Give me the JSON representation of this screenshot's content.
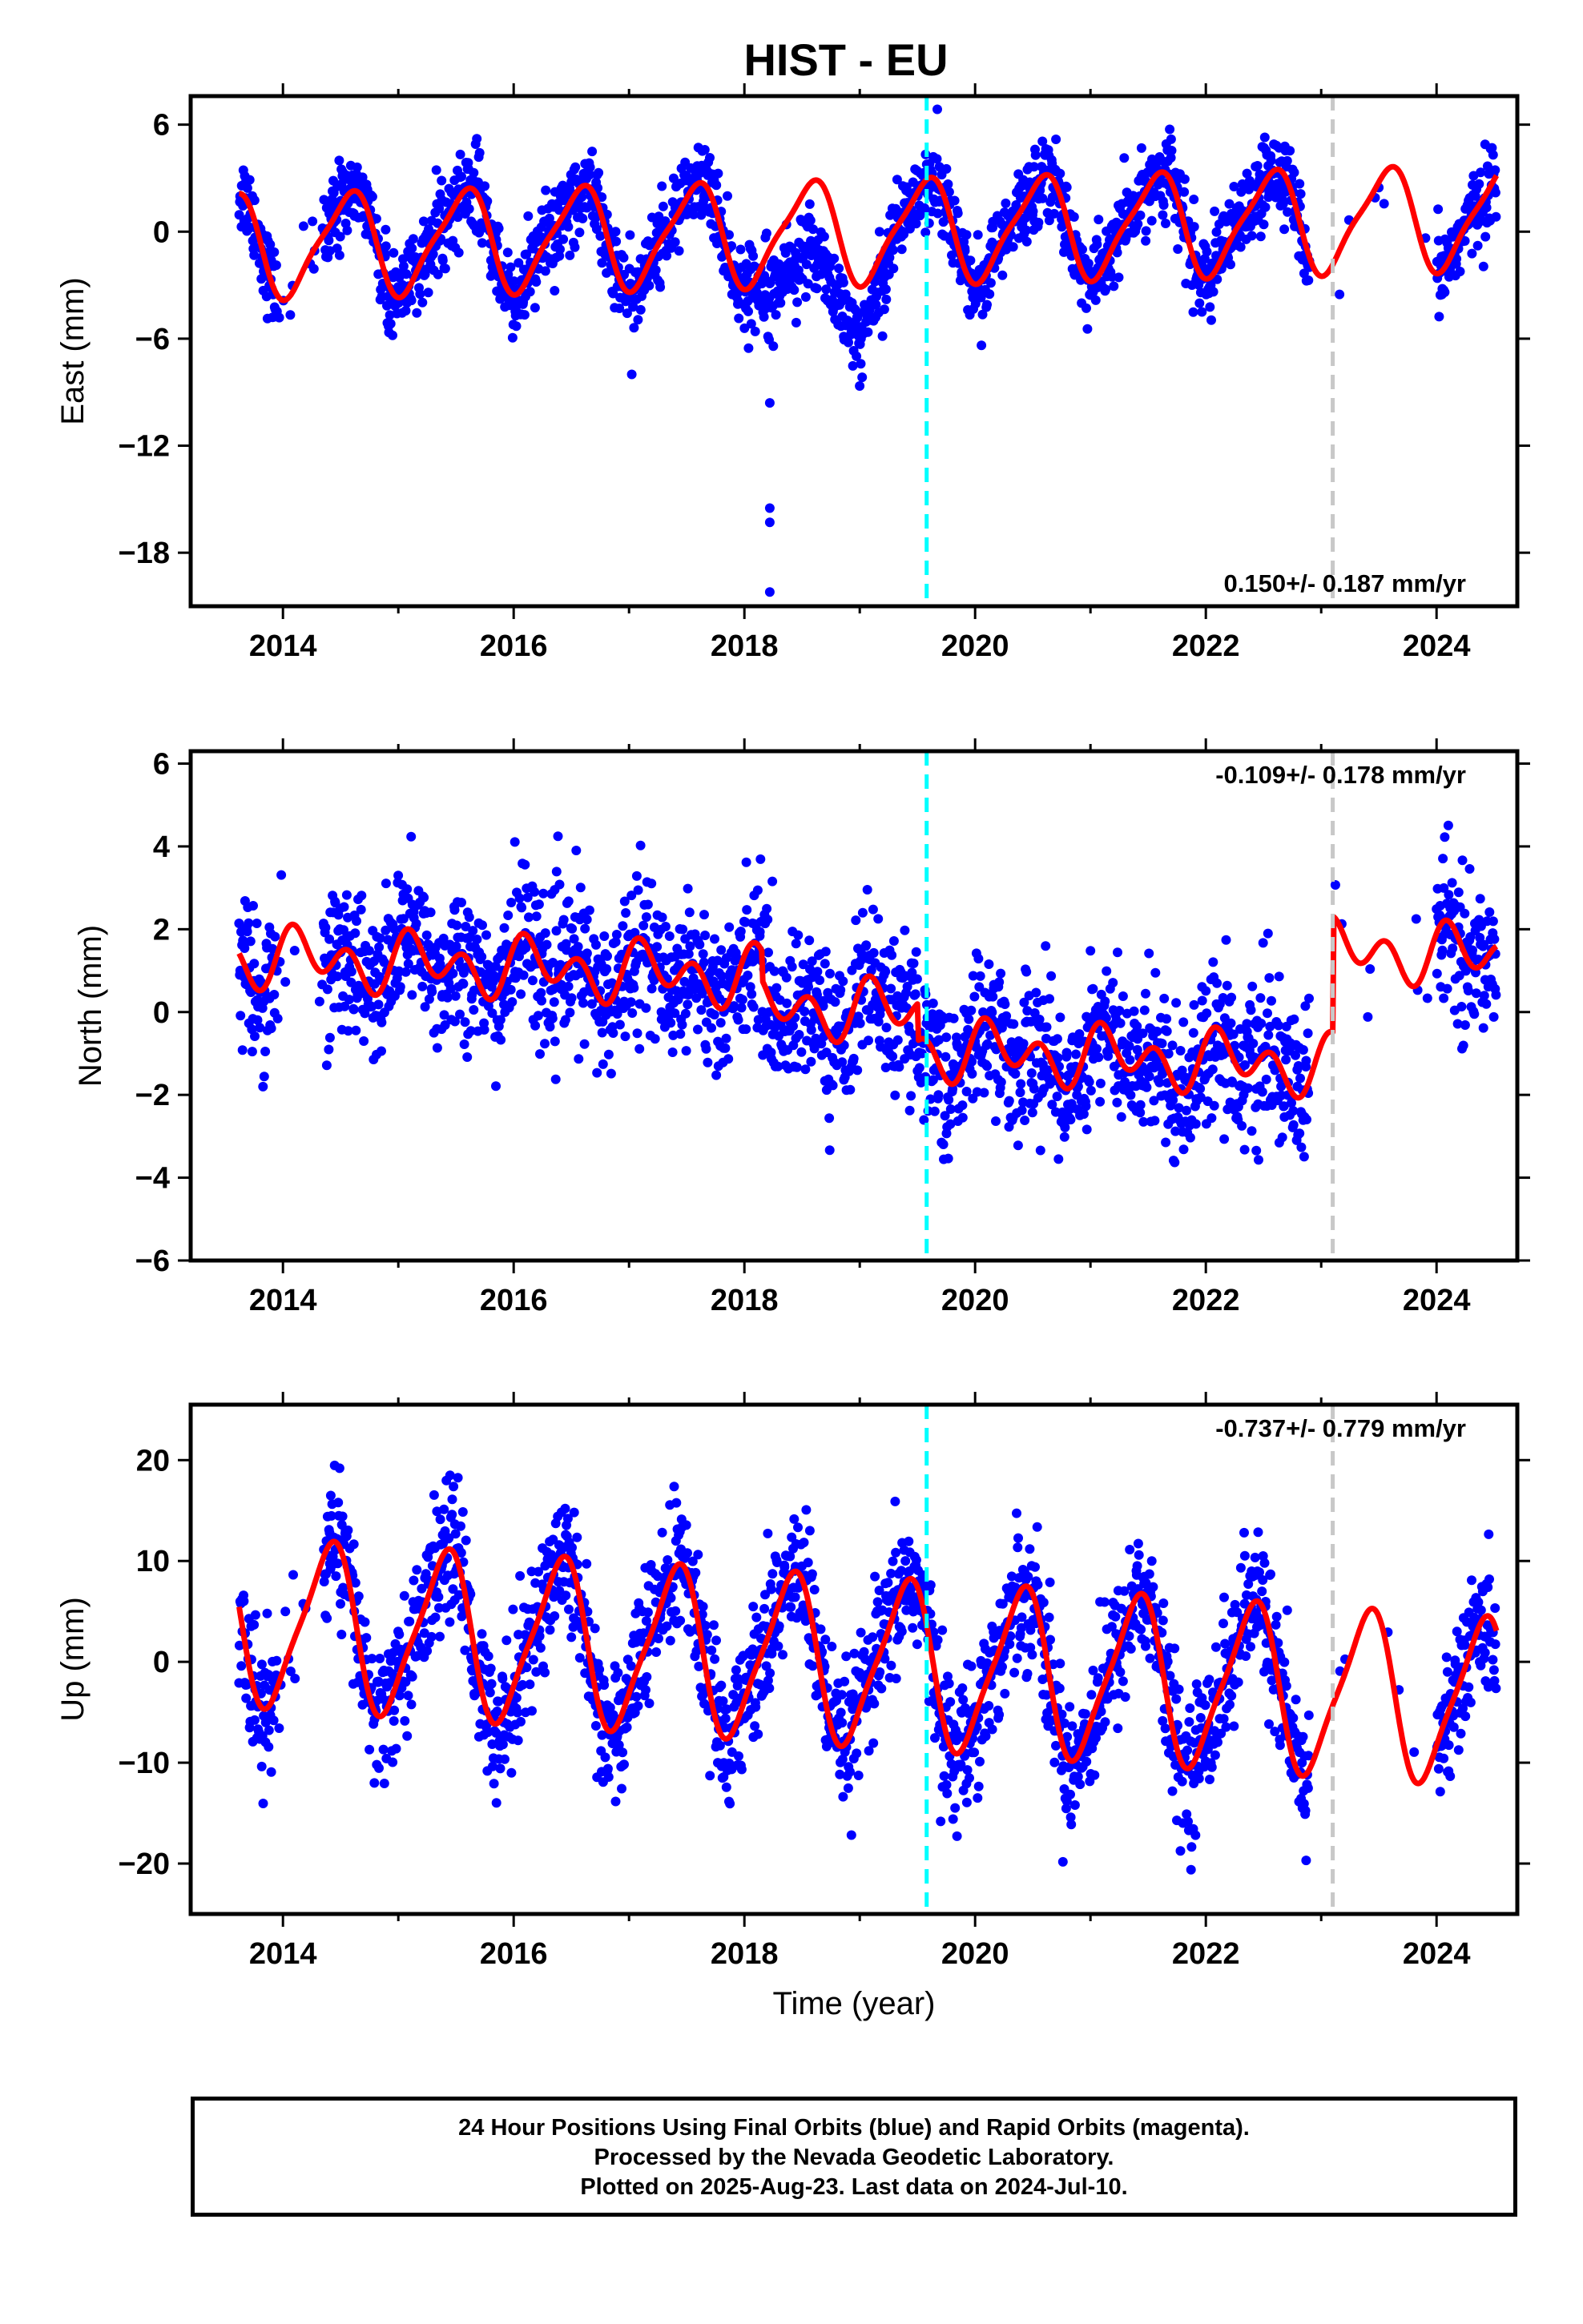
{
  "chart_data": {
    "title": "HIST - EU",
    "x_axis": {
      "label": "Time (year)",
      "range": [
        2013.2,
        2024.7
      ],
      "tick_labels": [
        "2014",
        "2016",
        "2018",
        "2020",
        "2022",
        "2024"
      ],
      "tick_values": [
        2014,
        2016,
        2018,
        2020,
        2022,
        2024
      ]
    },
    "markers": [
      {
        "x": 2019.58,
        "color": "#00ffff",
        "style": "dashed"
      },
      {
        "x": 2023.1,
        "color": "#c8c8c8",
        "style": "dashed"
      }
    ],
    "colors": {
      "points": "#0000ff",
      "model": "#ff0000"
    },
    "data_span": [
      2013.62,
      2024.52
    ],
    "gap": [
      2022.9,
      2024.0
    ],
    "panels": [
      {
        "type": "scatter",
        "ylabel": "East (mm)",
        "ylim": [
          -21,
          7.6
        ],
        "y_ticks": [
          6,
          0,
          -6,
          -12,
          -18
        ],
        "y_tick_labels": [
          "6",
          "0",
          "−6",
          "−12",
          "−18"
        ],
        "rate_text": "0.150+/- 0.187 mm/yr",
        "rate_position": "bottom-right",
        "model": {
          "offset": 0.0,
          "trend": 0.15,
          "a1_cos": -2.6,
          "a1_sin": -1.0,
          "a2_cos": -0.5,
          "a2_sin": 0.4,
          "noise": 1.15
        },
        "anomalies": [
          {
            "from": 2018.05,
            "to": 2019.3,
            "shift": -4.0
          },
          {
            "x": 2018.22,
            "values": [
              -9.6,
              -15.5,
              -16.3,
              -20.2
            ]
          }
        ]
      },
      {
        "type": "scatter",
        "ylabel": "North (mm)",
        "ylim": [
          -6,
          6.3
        ],
        "y_ticks": [
          6,
          4,
          2,
          0,
          -2,
          -4,
          -6
        ],
        "y_tick_labels": [
          "6",
          "4",
          "2",
          "0",
          "−2",
          "−4",
          "−6"
        ],
        "rate_text": "-0.109+/- 0.178 mm/yr",
        "rate_position": "top-right",
        "model": {
          "offset": 0.75,
          "trend": -0.11,
          "a1_cos": 0.15,
          "a1_sin": 0.35,
          "a2_cos": 0.35,
          "a2_sin": 0.4,
          "noise": 0.9
        },
        "offsets": [
          {
            "from": 2018.15,
            "to": 2019.5,
            "shift": -0.7
          },
          {
            "from": 2019.5,
            "to": 2023.1,
            "shift": -1.6
          },
          {
            "from": 2023.1,
            "to": 2024.7,
            "shift": 1.2
          }
        ]
      },
      {
        "type": "scatter",
        "ylabel": "Up (mm)",
        "ylim": [
          -25,
          25.5
        ],
        "y_ticks": [
          20,
          10,
          0,
          -10,
          -20
        ],
        "y_tick_labels": [
          "20",
          "10",
          "0",
          "−10",
          "−20"
        ],
        "rate_text": "-0.737+/- 0.779 mm/yr",
        "rate_position": "top-right",
        "model": {
          "offset": 0.0,
          "trend": -0.737,
          "a1_cos": -6.2,
          "a1_sin": 5.0,
          "a2_cos": 1.6,
          "a2_sin": 0.3,
          "noise": 3.4
        }
      }
    ]
  },
  "caption": {
    "line1": "24 Hour Positions Using Final Orbits (blue) and Rapid Orbits (magenta).",
    "line2": "Processed by the Nevada Geodetic Laboratory.",
    "line3": "Plotted on 2025-Aug-23. Last data on 2024-Jul-10."
  }
}
